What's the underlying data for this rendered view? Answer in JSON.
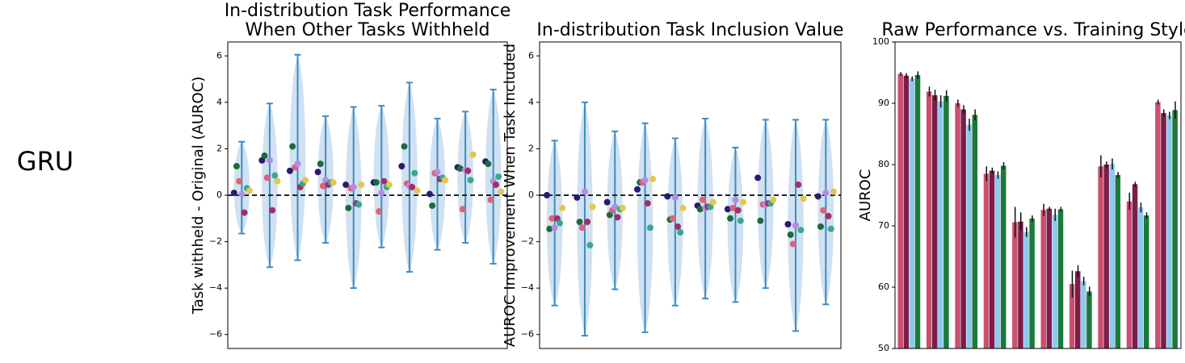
{
  "row_label": "GRU",
  "chart_data": [
    {
      "type": "violin",
      "title": [
        "In-distribution Task Performance",
        "When Other Tasks Withheld"
      ],
      "ylabel": "Task withheld - Original (AUROC)",
      "ylim": [
        -6.6,
        6.6
      ],
      "yticks": [
        {
          "value": -6,
          "label": "−6"
        },
        {
          "value": -4,
          "label": "−4"
        },
        {
          "value": -2,
          "label": "−2"
        },
        0,
        2,
        4,
        6
      ],
      "hline": 0,
      "max": [
        2.3,
        3.95,
        6.05,
        3.4,
        3.8,
        3.85,
        4.85,
        3.3,
        3.6,
        4.55
      ],
      "min": [
        -1.65,
        -3.1,
        -2.8,
        -2.05,
        -4.0,
        -2.25,
        -3.3,
        -2.35,
        -2.05,
        -2.95
      ],
      "series": [
        {
          "color": "#2a1b6e",
          "values": [
            0.1,
            1.5,
            1.05,
            1.0,
            0.45,
            0.55,
            1.25,
            0.05,
            1.2,
            1.45
          ]
        },
        {
          "color": "#1b6b3c",
          "values": [
            1.25,
            1.7,
            2.1,
            1.35,
            -0.55,
            0.55,
            2.1,
            -0.45,
            1.15,
            1.35
          ]
        },
        {
          "color": "#e0607a",
          "values": [
            0.6,
            0.75,
            1.2,
            0.4,
            0.3,
            -0.7,
            0.5,
            0.95,
            -0.6,
            -0.2
          ]
        },
        {
          "color": "#b48ce0",
          "values": [
            0.05,
            1.5,
            1.35,
            0.65,
            0.35,
            0.1,
            0.4,
            1.0,
            1.1,
            0.6
          ]
        },
        {
          "color": "#a02e6c",
          "values": [
            -0.75,
            -0.65,
            0.35,
            0.45,
            -0.35,
            0.6,
            0.35,
            0.7,
            1.05,
            0.45
          ]
        },
        {
          "color": "#3aa88a",
          "values": [
            0.3,
            0.85,
            0.5,
            0.55,
            -0.4,
            0.35,
            0.95,
            0.75,
            0.65,
            0.8
          ]
        },
        {
          "color": "#e3c84e",
          "values": [
            0.2,
            0.6,
            0.65,
            0.55,
            0.45,
            0.45,
            0.2,
            0.65,
            1.75,
            0.15
          ]
        }
      ]
    },
    {
      "type": "violin",
      "title": [
        "In-distribution Task Inclusion Value"
      ],
      "ylabel": "AUROC Improvement When Task Included",
      "ylim": [
        -6.6,
        6.6
      ],
      "yticks": [
        {
          "value": -6,
          "label": "−6"
        },
        {
          "value": -4,
          "label": "−4"
        },
        {
          "value": -2,
          "label": "−2"
        },
        0,
        2,
        4,
        6
      ],
      "hline": 0,
      "max": [
        2.35,
        4.0,
        2.75,
        3.1,
        2.45,
        3.3,
        2.05,
        3.25,
        3.25,
        3.25
      ],
      "min": [
        -4.75,
        -6.05,
        -4.05,
        -5.9,
        -4.75,
        -4.45,
        -4.6,
        -4.0,
        -5.85,
        -4.7
      ],
      "series": [
        {
          "color": "#2a1b6e",
          "values": [
            0.0,
            -0.1,
            -0.3,
            0.25,
            -0.05,
            -0.45,
            -0.6,
            0.75,
            -1.25,
            -0.05
          ]
        },
        {
          "color": "#1b6b3c",
          "values": [
            -1.45,
            -1.15,
            -0.85,
            0.55,
            -1.05,
            -0.6,
            -1.0,
            -1.1,
            -1.7,
            -1.35
          ]
        },
        {
          "color": "#e0607a",
          "values": [
            -1.0,
            -1.4,
            -0.65,
            0.55,
            -1.0,
            -0.2,
            -0.55,
            -0.4,
            -2.1,
            -0.65
          ]
        },
        {
          "color": "#b48ce0",
          "values": [
            -1.4,
            0.15,
            -0.5,
            0.65,
            -0.1,
            -0.55,
            -0.2,
            -0.4,
            -1.3,
            0.1
          ]
        },
        {
          "color": "#a02e6c",
          "values": [
            -1.0,
            -1.15,
            -0.95,
            -0.35,
            -1.35,
            -0.5,
            -0.65,
            -0.35,
            0.45,
            -0.9
          ]
        },
        {
          "color": "#3aa88a",
          "values": [
            -1.2,
            -2.15,
            -0.6,
            -1.4,
            -1.6,
            -0.5,
            -1.1,
            -0.35,
            -1.5,
            -1.45
          ]
        },
        {
          "color": "#e3c84e",
          "values": [
            -0.55,
            -0.5,
            -0.55,
            0.7,
            -0.55,
            -0.3,
            -0.3,
            -0.2,
            -0.15,
            0.15
          ]
        }
      ]
    },
    {
      "type": "bar",
      "title": [
        "Raw Performance vs. Training Style"
      ],
      "ylabel": "AUROC",
      "ylim": [
        50,
        100
      ],
      "yticks": [
        50,
        60,
        70,
        80,
        90,
        100
      ],
      "series": [
        {
          "color": "#c9506e",
          "values": [
            94.8,
            91.9,
            90.0,
            78.5,
            70.6,
            72.6,
            60.5,
            79.7,
            74.0,
            90.2
          ],
          "errors": [
            0.3,
            0.8,
            0.6,
            1.2,
            2.5,
            1.0,
            2.2,
            1.8,
            1.4,
            0.4
          ]
        },
        {
          "color": "#7b1d4a",
          "values": [
            94.5,
            91.3,
            89.0,
            79.0,
            70.7,
            72.8,
            62.6,
            80.0,
            76.8,
            88.4
          ],
          "errors": [
            0.4,
            0.9,
            0.7,
            0.5,
            1.5,
            0.3,
            1.0,
            0.5,
            0.4,
            0.6
          ]
        },
        {
          "color": "#8fc8ec",
          "values": [
            94.0,
            90.3,
            86.5,
            78.3,
            69.0,
            71.8,
            61.0,
            80.1,
            73.0,
            88.0
          ],
          "errors": [
            0.4,
            1.0,
            1.0,
            0.6,
            0.8,
            1.0,
            0.7,
            0.9,
            0.8,
            0.6
          ]
        },
        {
          "color": "#1b7a3a",
          "values": [
            94.6,
            91.2,
            88.1,
            79.8,
            71.2,
            72.7,
            59.3,
            78.3,
            71.7,
            88.9
          ],
          "errors": [
            0.6,
            0.9,
            0.9,
            0.6,
            0.5,
            0.4,
            0.8,
            0.5,
            0.5,
            1.4
          ]
        }
      ]
    }
  ]
}
